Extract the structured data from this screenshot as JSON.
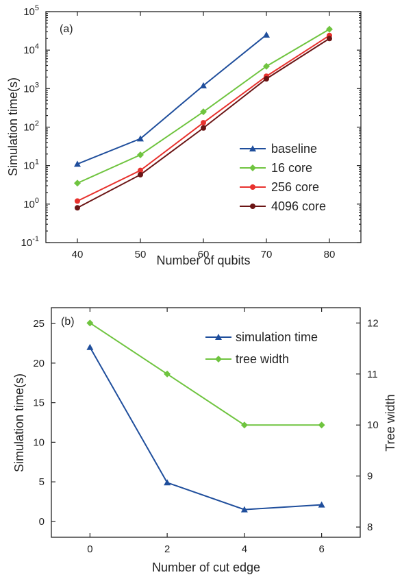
{
  "chart_data": [
    {
      "type": "line",
      "panel_label": "(a)",
      "xlabel": "Number of qubits",
      "ylabel": "Simulation time(s)",
      "yscale": "log",
      "xlim": [
        35,
        85
      ],
      "ylim": [
        0.1,
        100000
      ],
      "x_ticks": [
        40,
        50,
        60,
        70,
        80
      ],
      "y_ticks": [
        {
          "value": 0.1,
          "base": "10",
          "exp": "-1"
        },
        {
          "value": 1,
          "base": "10",
          "exp": "0"
        },
        {
          "value": 10,
          "base": "10",
          "exp": "1"
        },
        {
          "value": 100,
          "base": "10",
          "exp": "2"
        },
        {
          "value": 1000,
          "base": "10",
          "exp": "3"
        },
        {
          "value": 10000,
          "base": "10",
          "exp": "4"
        },
        {
          "value": 100000,
          "base": "10",
          "exp": "5"
        }
      ],
      "legend_position": "right",
      "series": [
        {
          "name": "baseline",
          "color": "#1f4e9c",
          "marker": "triangle",
          "x": [
            40,
            50,
            60,
            70
          ],
          "values": [
            11,
            50,
            1200,
            25000
          ]
        },
        {
          "name": "16 core",
          "color": "#6fc43f",
          "marker": "diamond",
          "x": [
            40,
            50,
            60,
            70,
            80
          ],
          "values": [
            3.5,
            19,
            250,
            3800,
            35000
          ]
        },
        {
          "name": "256 core",
          "color": "#e8312d",
          "marker": "circle",
          "x": [
            40,
            50,
            60,
            70,
            80
          ],
          "values": [
            1.2,
            7.5,
            130,
            2100,
            24000
          ]
        },
        {
          "name": "4096 core",
          "color": "#6b1515",
          "marker": "circle",
          "x": [
            40,
            50,
            60,
            70,
            80
          ],
          "values": [
            0.8,
            5.8,
            95,
            1800,
            20000
          ]
        }
      ]
    },
    {
      "type": "line",
      "panel_label": "(b)",
      "xlabel": "Number of cut edge",
      "ylabel": "Simulation time(s)",
      "y2label": "Tree width",
      "xlim": [
        -1,
        7
      ],
      "ylim": [
        -2,
        27
      ],
      "y2lim": [
        7.8,
        12.3
      ],
      "x_ticks": [
        0,
        2,
        4,
        6
      ],
      "y_ticks": [
        0,
        5,
        10,
        15,
        20,
        25
      ],
      "y2_ticks": [
        8,
        9,
        10,
        11,
        12
      ],
      "legend_position": "top-right",
      "series": [
        {
          "name": "simulation time",
          "axis": "left",
          "color": "#1f4e9c",
          "marker": "triangle",
          "x": [
            0,
            2,
            4,
            6
          ],
          "values": [
            22,
            4.9,
            1.5,
            2.1
          ]
        },
        {
          "name": "tree width",
          "axis": "right",
          "color": "#6fc43f",
          "marker": "diamond",
          "x": [
            0,
            2,
            4,
            6
          ],
          "values": [
            12,
            11,
            10,
            10
          ]
        }
      ]
    }
  ]
}
